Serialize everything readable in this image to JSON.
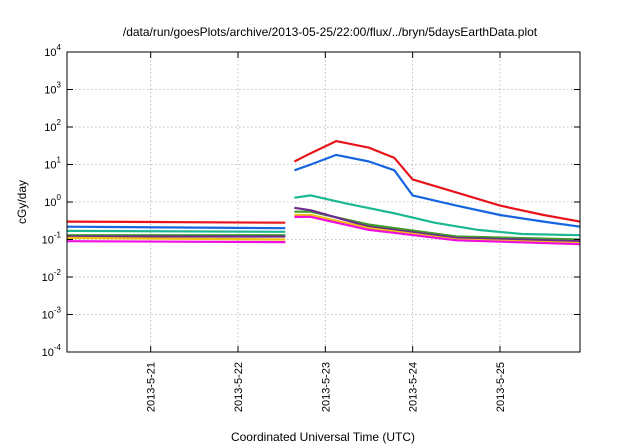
{
  "chart_data": {
    "type": "line",
    "title": "/data/run/goesPlots/archive/2013-05-25/22:00/flux/../bryn/5daysEarthData.plot",
    "xlabel": "Coordinated Universal Time (UTC)",
    "ylabel": "cGy/day",
    "yscale": "log",
    "xlim": [
      "2013-05-20T01:00",
      "2013-05-25T22:00"
    ],
    "ylim": [
      0.0001,
      10000
    ],
    "grid": true,
    "legend": "none",
    "x_ticks": [
      {
        "label": "2013-5-21",
        "x": "2013-05-21T00:00"
      },
      {
        "label": "2013-5-22",
        "x": "2013-05-22T00:00"
      },
      {
        "label": "2013-5-23",
        "x": "2013-05-23T00:00"
      },
      {
        "label": "2013-5-24",
        "x": "2013-05-24T00:00"
      },
      {
        "label": "2013-5-25",
        "x": "2013-05-25T00:00"
      }
    ],
    "y_ticks": [
      {
        "base": "10",
        "exp": "-4",
        "value": 0.0001
      },
      {
        "base": "10",
        "exp": "-3",
        "value": 0.001
      },
      {
        "base": "10",
        "exp": "-2",
        "value": 0.01
      },
      {
        "base": "10",
        "exp": "-1",
        "value": 0.1
      },
      {
        "base": "10",
        "exp": "0",
        "value": 1
      },
      {
        "base": "10",
        "exp": "1",
        "value": 10
      },
      {
        "base": "10",
        "exp": "2",
        "value": 100
      },
      {
        "base": "10",
        "exp": "3",
        "value": 1000
      },
      {
        "base": "10",
        "exp": "4",
        "value": 10000
      }
    ],
    "series": [
      {
        "color": "#e8141c",
        "x": [
          "2013-05-20T01:00",
          "2013-05-22T13:00",
          "2013-05-22T15:30",
          "2013-05-22T20:00",
          "2013-05-23T03:00",
          "2013-05-23T12:00",
          "2013-05-23T19:00",
          "2013-05-24T00:00",
          "2013-05-24T12:00",
          "2013-05-25T00:00",
          "2013-05-25T12:00",
          "2013-05-25T22:00"
        ],
        "y": [
          0.3,
          0.28,
          12,
          20,
          42,
          28,
          15,
          4,
          1.8,
          0.8,
          0.45,
          0.3
        ]
      },
      {
        "color": "#1565e0",
        "x": [
          "2013-05-20T01:00",
          "2013-05-22T13:00",
          "2013-05-22T15:30",
          "2013-05-22T20:00",
          "2013-05-23T03:00",
          "2013-05-23T12:00",
          "2013-05-23T19:00",
          "2013-05-24T00:00",
          "2013-05-24T12:00",
          "2013-05-25T00:00",
          "2013-05-25T12:00",
          "2013-05-25T22:00"
        ],
        "y": [
          0.22,
          0.2,
          7,
          10,
          18,
          12,
          7,
          1.5,
          0.8,
          0.45,
          0.3,
          0.22
        ]
      },
      {
        "color": "#1ab890",
        "x": [
          "2013-05-20T01:00",
          "2013-05-22T13:00",
          "2013-05-22T15:30",
          "2013-05-22T20:00",
          "2013-05-23T06:00",
          "2013-05-23T19:00",
          "2013-05-24T06:00",
          "2013-05-24T18:00",
          "2013-05-25T06:00",
          "2013-05-25T22:00"
        ],
        "y": [
          0.17,
          0.16,
          1.3,
          1.5,
          0.9,
          0.5,
          0.28,
          0.18,
          0.14,
          0.13
        ]
      },
      {
        "color": "#3f9e2a",
        "x": [
          "2013-05-20T01:00",
          "2013-05-22T13:00",
          "2013-05-22T15:30",
          "2013-05-22T20:00",
          "2013-05-23T12:00",
          "2013-05-24T12:00",
          "2013-05-25T22:00"
        ],
        "y": [
          0.13,
          0.13,
          0.55,
          0.55,
          0.25,
          0.12,
          0.1
        ]
      },
      {
        "color": "#6b2a8e",
        "x": [
          "2013-05-20T01:00",
          "2013-05-22T13:00",
          "2013-05-22T15:30",
          "2013-05-22T20:00",
          "2013-05-23T12:00",
          "2013-05-24T12:00",
          "2013-05-25T22:00"
        ],
        "y": [
          0.12,
          0.12,
          0.7,
          0.6,
          0.22,
          0.11,
          0.09
        ]
      },
      {
        "color": "#f0c010",
        "x": [
          "2013-05-20T01:00",
          "2013-05-22T13:00",
          "2013-05-22T15:30",
          "2013-05-22T20:00",
          "2013-05-23T12:00",
          "2013-05-24T12:00",
          "2013-05-25T22:00"
        ],
        "y": [
          0.11,
          0.1,
          0.45,
          0.45,
          0.2,
          0.1,
          0.08
        ]
      },
      {
        "color": "#ee10e0",
        "x": [
          "2013-05-20T01:00",
          "2013-05-22T13:00",
          "2013-05-22T15:30",
          "2013-05-22T20:00",
          "2013-05-23T12:00",
          "2013-05-24T12:00",
          "2013-05-25T22:00"
        ],
        "y": [
          0.09,
          0.085,
          0.4,
          0.4,
          0.18,
          0.095,
          0.075
        ]
      }
    ]
  }
}
